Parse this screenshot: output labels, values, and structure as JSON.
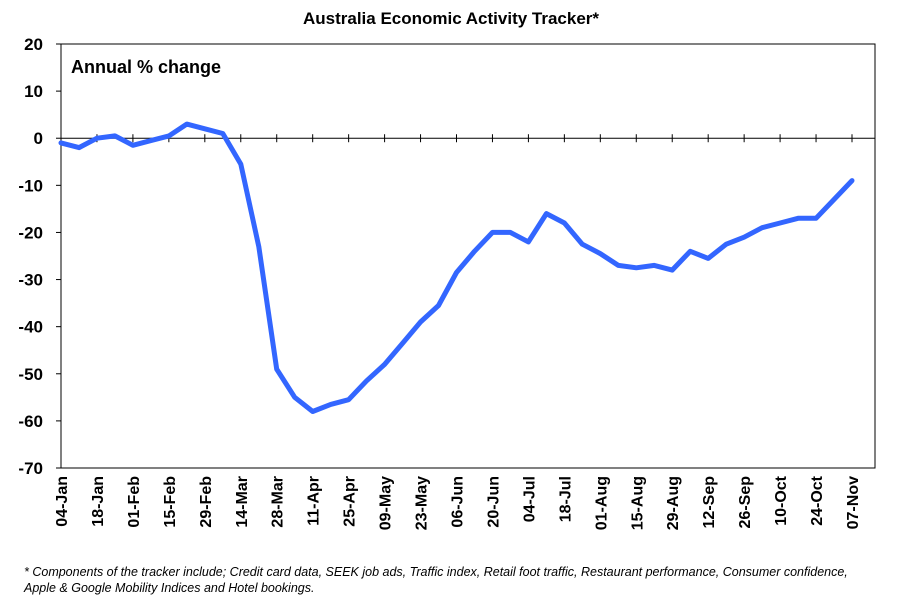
{
  "chart_data": {
    "type": "line",
    "title": "Australia Economic Activity Tracker*",
    "unit_label": "Annual % change",
    "xlabel": "",
    "ylabel": "",
    "ylim": [
      -70,
      20
    ],
    "yticks": [
      20,
      10,
      0,
      -10,
      -20,
      -30,
      -40,
      -50,
      -60,
      -70
    ],
    "x_tick_labels": [
      "04-Jan",
      "18-Jan",
      "01-Feb",
      "15-Feb",
      "29-Feb",
      "14-Mar",
      "28-Mar",
      "11-Apr",
      "25-Apr",
      "09-May",
      "23-May",
      "06-Jun",
      "20-Jun",
      "04-Jul",
      "18-Jul",
      "01-Aug",
      "15-Aug",
      "29-Aug",
      "12-Sep",
      "26-Sep",
      "10-Oct",
      "24-Oct",
      "07-Nov"
    ],
    "grid": false,
    "line_color": "#3366ff",
    "series": [
      {
        "x": [
          "04-Jan",
          "11-Jan",
          "18-Jan",
          "25-Jan",
          "01-Feb",
          "08-Feb",
          "15-Feb",
          "22-Feb",
          "29-Feb",
          "07-Mar",
          "14-Mar",
          "21-Mar",
          "28-Mar",
          "04-Apr",
          "11-Apr",
          "18-Apr",
          "25-Apr",
          "02-May",
          "09-May",
          "16-May",
          "23-May",
          "30-May",
          "06-Jun",
          "13-Jun",
          "20-Jun",
          "27-Jun",
          "04-Jul",
          "11-Jul",
          "18-Jul",
          "25-Jul",
          "01-Aug",
          "08-Aug",
          "15-Aug",
          "22-Aug",
          "29-Aug",
          "05-Sep",
          "12-Sep",
          "19-Sep",
          "26-Sep",
          "03-Oct",
          "10-Oct",
          "17-Oct",
          "24-Oct",
          "31-Oct",
          "07-Nov"
        ],
        "values": [
          -1.0,
          -2.0,
          0.0,
          0.5,
          -1.5,
          -0.5,
          0.5,
          3.0,
          2.0,
          1.0,
          -5.5,
          -23.0,
          -49.0,
          -55.0,
          -58.0,
          -56.5,
          -55.5,
          -51.5,
          -48.0,
          -43.5,
          -39.0,
          -35.5,
          -28.5,
          -24.0,
          -20.0,
          -20.0,
          -22.0,
          -16.0,
          -18.0,
          -22.5,
          -24.5,
          -27.0,
          -27.5,
          -27.0,
          -28.0,
          -24.0,
          -25.5,
          -22.5,
          -21.0,
          -19.0,
          -18.0,
          -17.0,
          -17.0,
          -13.0,
          -9.0
        ]
      }
    ]
  },
  "footnote": "* Components of the tracker include; Credit card data, SEEK job ads, Traffic index, Retail foot traffic, Restaurant performance, Consumer confidence, Apple & Google Mobility Indices and Hotel bookings."
}
